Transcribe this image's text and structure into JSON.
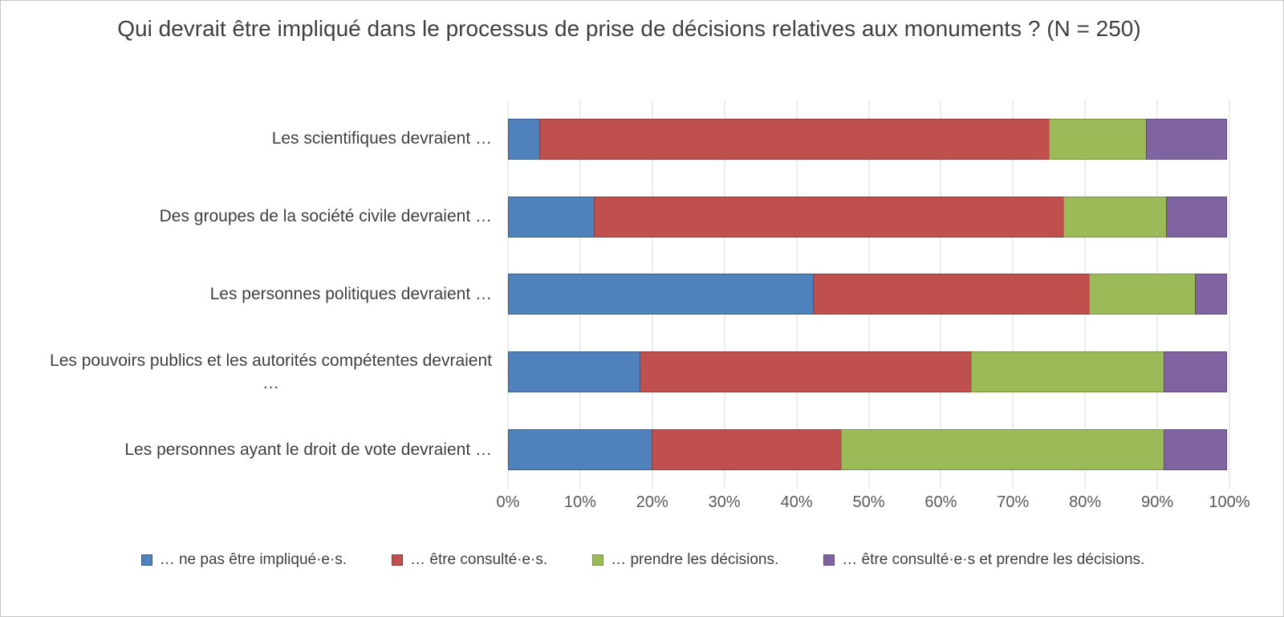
{
  "title": "Qui devrait être impliqué dans le processus de prise de décisions relatives aux monuments ? (N = 250)",
  "colors": {
    "background": "#ffffff",
    "canvas_border": "#c6c6c6",
    "gridline": "#d9d9d9",
    "title_text": "#404040",
    "category_text": "#404040",
    "tick_text": "#595959",
    "legend_text": "#404040"
  },
  "chart_data": {
    "type": "bar",
    "orientation": "horizontal",
    "stacked": true,
    "title": "Qui devrait être impliqué dans le processus de prise de décisions relatives aux monuments ? (N = 250)",
    "sample_size": 250,
    "categories": [
      "Les scientifiques devraient …",
      "Des groupes de la société civile devraient …",
      "Les personnes politiques devraient …",
      "Les pouvoirs publics et les autorités compétentes devraient\n…",
      "Les personnes ayant le droit de vote devraient …"
    ],
    "series": [
      {
        "name": "… ne pas être impliqué·e·s.",
        "color": "#4f81bd",
        "border_color": "#385d8a",
        "values": [
          4.4,
          12.0,
          42.4,
          18.4,
          20.0
        ]
      },
      {
        "name": "… être consulté·e·s.",
        "color": "#c0504d",
        "border_color": "#953735",
        "values": [
          70.8,
          65.2,
          38.4,
          46.0,
          26.4
        ]
      },
      {
        "name": "… prendre les décisions.",
        "color": "#9bbb59",
        "border_color": "#77933c",
        "values": [
          13.6,
          14.4,
          14.8,
          26.8,
          44.8
        ]
      },
      {
        "name": "… être consulté·e·s et prendre les décisions.",
        "color": "#8064a2",
        "border_color": "#604a7b",
        "values": [
          11.2,
          8.4,
          4.4,
          8.8,
          8.8
        ]
      }
    ],
    "x_ticks": [
      "0%",
      "10%",
      "20%",
      "30%",
      "40%",
      "50%",
      "60%",
      "70%",
      "80%",
      "90%",
      "100%"
    ],
    "xlim": [
      0,
      100
    ],
    "unit": "%",
    "grid": "vertical",
    "legend_position": "bottom"
  }
}
